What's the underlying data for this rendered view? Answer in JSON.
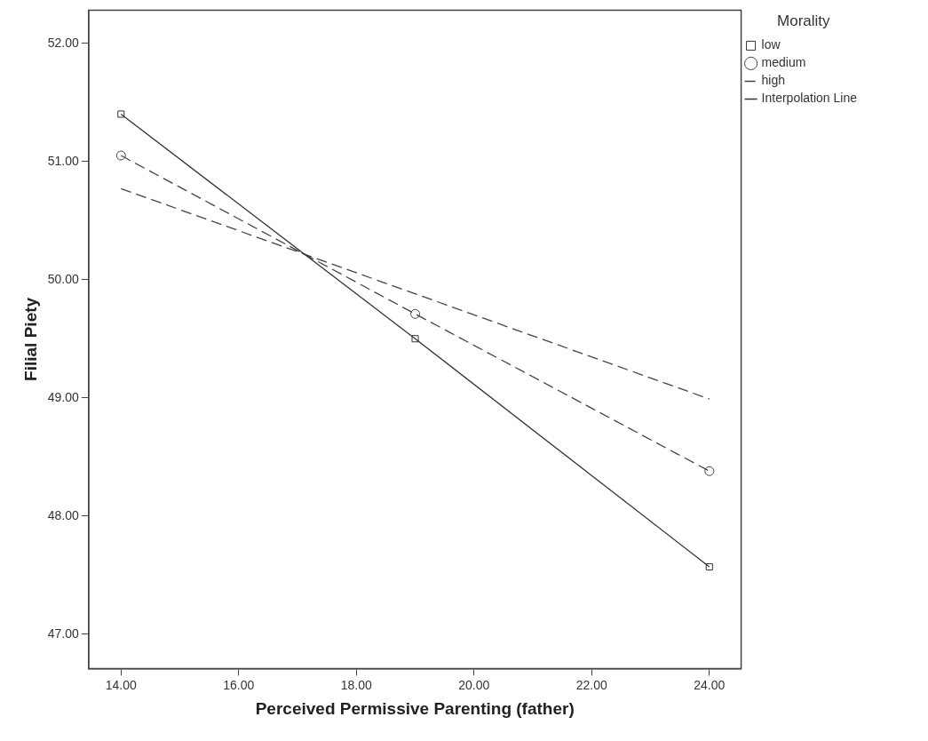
{
  "chart_data": {
    "type": "line",
    "xlabel": "Perceived Permissive Parenting (father)",
    "ylabel": "Filial Piety",
    "legend_title": "Morality",
    "legend": "top right",
    "grid": false,
    "x": [
      14,
      19,
      24
    ],
    "series": [
      {
        "name": "low",
        "color": "#333333",
        "values": [
          51.4,
          49.5,
          47.57
        ],
        "marker": "square",
        "line_style": "solid"
      },
      {
        "name": "medium",
        "color": "#444444",
        "values": [
          51.05,
          49.71,
          48.38
        ],
        "marker": "circle",
        "line_style": "dashed"
      },
      {
        "name": "high",
        "color": "#444444",
        "values": [
          50.77,
          49.88,
          48.99
        ],
        "marker": "none",
        "line_style": "dashed"
      }
    ],
    "xlim": [
      13.45,
      24.54
    ],
    "ylim": [
      46.71,
      52.28
    ],
    "xticks": [
      {
        "value": 14,
        "label": "14.00"
      },
      {
        "value": 16,
        "label": "16.00"
      },
      {
        "value": 18,
        "label": "18.00"
      },
      {
        "value": 20,
        "label": "20.00"
      },
      {
        "value": 22,
        "label": "22.00"
      },
      {
        "value": 24,
        "label": "24.00"
      }
    ],
    "yticks": [
      {
        "value": 47,
        "label": "47.00"
      },
      {
        "value": 48,
        "label": "48.00"
      },
      {
        "value": 49,
        "label": "49.00"
      },
      {
        "value": 50,
        "label": "50.00"
      },
      {
        "value": 51,
        "label": "51.00"
      },
      {
        "value": 52,
        "label": "52.00"
      }
    ],
    "annotations": [
      "Interpolation Line"
    ]
  }
}
